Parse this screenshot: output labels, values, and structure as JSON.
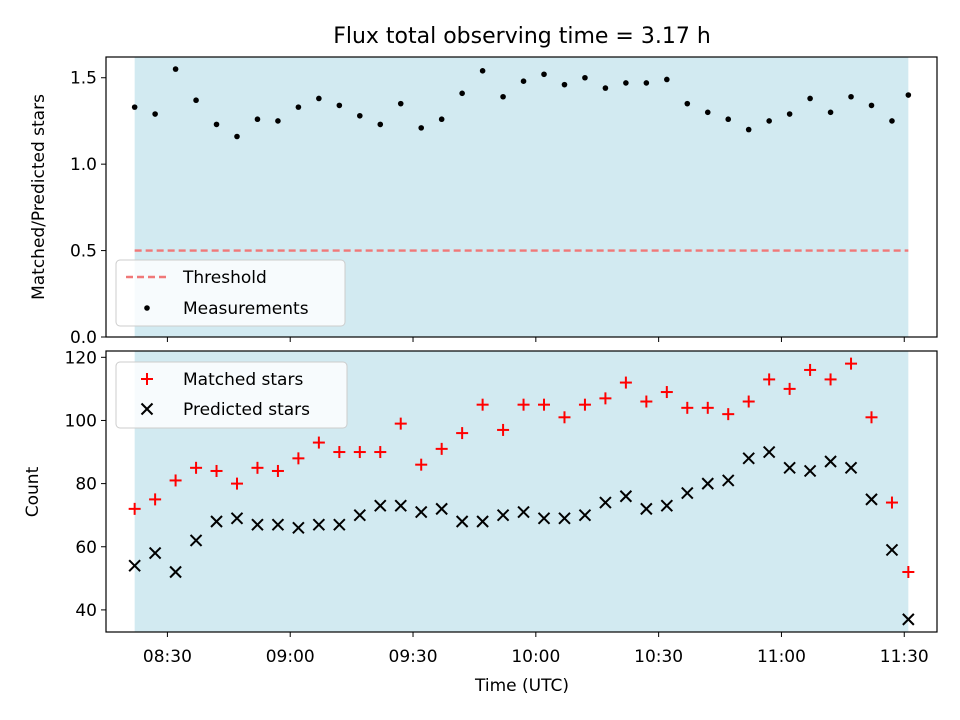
{
  "title": "Flux total observing time = 3.17 h",
  "colors": {
    "observing_band": "#add8e6",
    "threshold_line": "#f07878",
    "measurement_dot": "#000000",
    "matched_marker": "#ff0000",
    "predicted_marker": "#000000"
  },
  "chart_data": [
    {
      "type": "scatter",
      "title": "Flux total observing time = 3.17 h",
      "xlabel": "",
      "ylabel": "Matched/Predicted stars",
      "ylim": [
        0.0,
        1.62
      ],
      "yticks": [
        0.0,
        0.5,
        1.0,
        1.5
      ],
      "ytick_labels": [
        "0.0",
        "0.5",
        "1.0",
        "1.5"
      ],
      "xlim": [
        "08:15",
        "11:38"
      ],
      "xticks": [
        "08:30",
        "09:00",
        "09:30",
        "10:00",
        "10:30",
        "11:00",
        "11:30"
      ],
      "grid": false,
      "legend_position": "lower-left",
      "observing_band": [
        "08:22",
        "11:31"
      ],
      "threshold": {
        "name": "Threshold",
        "value": 0.5,
        "style": "dashed",
        "x_range": [
          "08:22",
          "11:31"
        ]
      },
      "series": [
        {
          "name": "Measurements",
          "marker": "dot",
          "x": [
            "08:22",
            "08:27",
            "08:32",
            "08:37",
            "08:42",
            "08:47",
            "08:52",
            "08:57",
            "09:02",
            "09:07",
            "09:12",
            "09:17",
            "09:22",
            "09:27",
            "09:32",
            "09:37",
            "09:42",
            "09:47",
            "09:52",
            "09:57",
            "10:02",
            "10:07",
            "10:12",
            "10:17",
            "10:22",
            "10:27",
            "10:32",
            "10:37",
            "10:42",
            "10:47",
            "10:52",
            "10:57",
            "11:02",
            "11:07",
            "11:12",
            "11:17",
            "11:22",
            "11:27",
            "11:31"
          ],
          "y": [
            1.33,
            1.29,
            1.55,
            1.37,
            1.23,
            1.16,
            1.26,
            1.25,
            1.33,
            1.38,
            1.34,
            1.28,
            1.23,
            1.35,
            1.21,
            1.26,
            1.41,
            1.54,
            1.39,
            1.48,
            1.52,
            1.46,
            1.5,
            1.44,
            1.47,
            1.47,
            1.49,
            1.35,
            1.3,
            1.26,
            1.2,
            1.25,
            1.29,
            1.38,
            1.3,
            1.39,
            1.34,
            1.25,
            1.4
          ]
        }
      ]
    },
    {
      "type": "scatter",
      "xlabel": "Time (UTC)",
      "ylabel": "Count",
      "ylim": [
        33,
        122
      ],
      "yticks": [
        40,
        60,
        80,
        100,
        120
      ],
      "ytick_labels": [
        "40",
        "60",
        "80",
        "100",
        "120"
      ],
      "xlim": [
        "08:15",
        "11:38"
      ],
      "xticks": [
        "08:30",
        "09:00",
        "09:30",
        "10:00",
        "10:30",
        "11:00",
        "11:30"
      ],
      "xtick_labels": [
        "08:30",
        "09:00",
        "09:30",
        "10:00",
        "10:30",
        "11:00",
        "11:30"
      ],
      "grid": false,
      "legend_position": "upper-left",
      "observing_band": [
        "08:22",
        "11:31"
      ],
      "series": [
        {
          "name": "Matched stars",
          "marker": "plus",
          "x": [
            "08:22",
            "08:27",
            "08:32",
            "08:37",
            "08:42",
            "08:47",
            "08:52",
            "08:57",
            "09:02",
            "09:07",
            "09:12",
            "09:17",
            "09:22",
            "09:27",
            "09:32",
            "09:37",
            "09:42",
            "09:47",
            "09:52",
            "09:57",
            "10:02",
            "10:07",
            "10:12",
            "10:17",
            "10:22",
            "10:27",
            "10:32",
            "10:37",
            "10:42",
            "10:47",
            "10:52",
            "10:57",
            "11:02",
            "11:07",
            "11:12",
            "11:17",
            "11:22",
            "11:27",
            "11:31"
          ],
          "y": [
            72,
            75,
            81,
            85,
            84,
            80,
            85,
            84,
            88,
            93,
            90,
            90,
            90,
            99,
            86,
            91,
            96,
            105,
            97,
            105,
            105,
            101,
            105,
            107,
            112,
            106,
            109,
            104,
            104,
            102,
            106,
            113,
            110,
            116,
            113,
            118,
            101,
            74,
            52
          ]
        },
        {
          "name": "Predicted stars",
          "marker": "x",
          "x": [
            "08:22",
            "08:27",
            "08:32",
            "08:37",
            "08:42",
            "08:47",
            "08:52",
            "08:57",
            "09:02",
            "09:07",
            "09:12",
            "09:17",
            "09:22",
            "09:27",
            "09:32",
            "09:37",
            "09:42",
            "09:47",
            "09:52",
            "09:57",
            "10:02",
            "10:07",
            "10:12",
            "10:17",
            "10:22",
            "10:27",
            "10:32",
            "10:37",
            "10:42",
            "10:47",
            "10:52",
            "10:57",
            "11:02",
            "11:07",
            "11:12",
            "11:17",
            "11:22",
            "11:27",
            "11:31"
          ],
          "y": [
            54,
            58,
            52,
            62,
            68,
            69,
            67,
            67,
            66,
            67,
            67,
            70,
            73,
            73,
            71,
            72,
            68,
            68,
            70,
            71,
            69,
            69,
            70,
            74,
            76,
            72,
            73,
            77,
            80,
            81,
            88,
            90,
            85,
            84,
            87,
            85,
            75,
            59,
            37
          ]
        }
      ]
    }
  ]
}
